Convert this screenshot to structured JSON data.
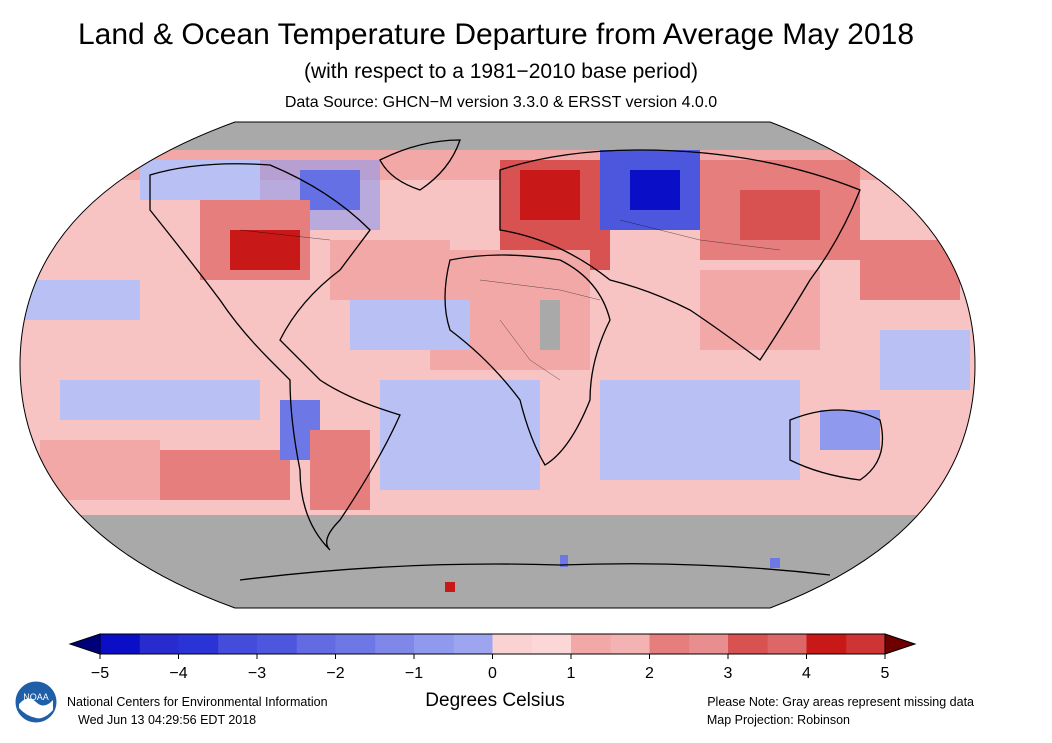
{
  "header": {
    "title": "Land & Ocean Temperature Departure from Average May 2018",
    "subtitle": "(with respect to a 1981−2010 base period)",
    "source": "Data Source: GHCN−M version 3.3.0 & ERSST version 4.0.0"
  },
  "map": {
    "projection": "Robinson",
    "missing_color": "#a9a9a9",
    "ocean_base_color": "#f7c3c3"
  },
  "colorbar": {
    "min": -5,
    "max": 5,
    "ticks": [
      "−5",
      "−4",
      "−3",
      "−2",
      "−1",
      "0",
      "1",
      "2",
      "3",
      "4",
      "5"
    ],
    "colors": [
      "#0a0ec7",
      "#2a34d6",
      "#4c57de",
      "#6d78e6",
      "#8f99ee",
      "#b8c0f4",
      "#fbd2d2",
      "#f3a8a8",
      "#e67e7e",
      "#d85252",
      "#c81818"
    ],
    "end_low": "#00007a",
    "end_high": "#6e0000",
    "label": "Degrees Celsius"
  },
  "footer": {
    "org": "National Centers for Environmental Information",
    "timestamp": "Wed Jun 13 04:29:56 EDT 2018",
    "note": "Please Note: Gray areas represent missing data",
    "projection_note": "Map Projection: Robinson",
    "logo_text": "NOAA"
  }
}
